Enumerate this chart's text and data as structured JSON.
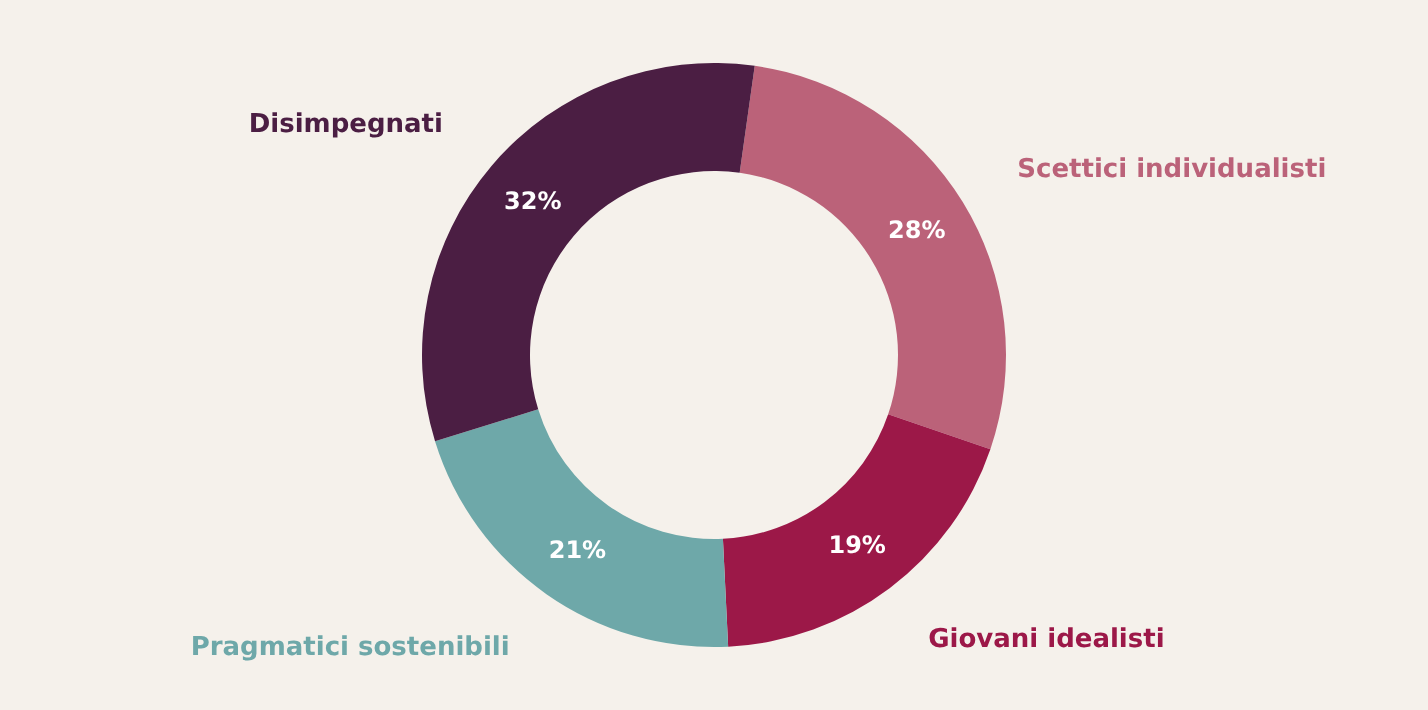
{
  "chart_data": {
    "type": "donut",
    "categories": [
      "Scettici individualisti",
      "Giovani idealisti",
      "Pragmatici sostenibili",
      "Disimpegnati"
    ],
    "values": [
      28,
      19,
      21,
      32
    ],
    "colors": [
      "#bb6279",
      "#9c1848",
      "#6ea8a9",
      "#4b1e43"
    ],
    "value_labels": [
      "28%",
      "19%",
      "21%",
      "32%"
    ],
    "legend": false
  }
}
